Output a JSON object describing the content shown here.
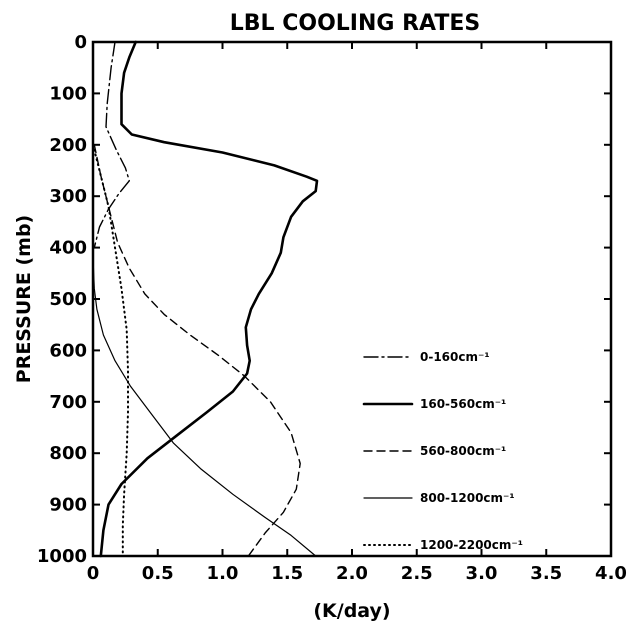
{
  "chart_data": {
    "type": "line",
    "title": "LBL COOLING RATES",
    "xlabel": "(K/day)",
    "ylabel": "PRESSURE (mb)",
    "xlim": [
      0,
      4.0
    ],
    "ylim": [
      1000,
      0
    ],
    "y_inverted": true,
    "grid": false,
    "legend_position": "right",
    "x_ticks": [
      "0",
      "0.5",
      "1.0",
      "1.5",
      "2.0",
      "2.5",
      "3.0",
      "3.5",
      "4.0"
    ],
    "y_ticks": [
      "0",
      "100",
      "200",
      "300",
      "400",
      "500",
      "600",
      "700",
      "800",
      "900",
      "1000"
    ],
    "series": [
      {
        "name": "0-160cm⁻¹",
        "style": "dashdot",
        "width": 1.4,
        "points": [
          [
            0.17,
            0
          ],
          [
            0.14,
            50
          ],
          [
            0.11,
            120
          ],
          [
            0.1,
            165
          ],
          [
            0.18,
            210
          ],
          [
            0.25,
            245
          ],
          [
            0.28,
            270
          ],
          [
            0.2,
            295
          ],
          [
            0.12,
            325
          ],
          [
            0.05,
            360
          ],
          [
            0.01,
            400
          ]
        ]
      },
      {
        "name": "160-560cm⁻¹",
        "style": "solid",
        "width": 2.6,
        "points": [
          [
            0.33,
            0
          ],
          [
            0.28,
            30
          ],
          [
            0.24,
            60
          ],
          [
            0.22,
            100
          ],
          [
            0.22,
            140
          ],
          [
            0.22,
            160
          ],
          [
            0.3,
            180
          ],
          [
            0.55,
            195
          ],
          [
            1.0,
            215
          ],
          [
            1.4,
            240
          ],
          [
            1.65,
            262
          ],
          [
            1.73,
            270
          ],
          [
            1.72,
            290
          ],
          [
            1.62,
            310
          ],
          [
            1.53,
            340
          ],
          [
            1.47,
            380
          ],
          [
            1.45,
            410
          ],
          [
            1.38,
            450
          ],
          [
            1.28,
            490
          ],
          [
            1.22,
            520
          ],
          [
            1.18,
            555
          ],
          [
            1.19,
            590
          ],
          [
            1.21,
            620
          ],
          [
            1.19,
            645
          ],
          [
            1.08,
            680
          ],
          [
            0.88,
            720
          ],
          [
            0.65,
            765
          ],
          [
            0.42,
            810
          ],
          [
            0.22,
            860
          ],
          [
            0.12,
            900
          ],
          [
            0.08,
            950
          ],
          [
            0.06,
            1000
          ]
        ]
      },
      {
        "name": "560-800cm⁻¹",
        "style": "dashed",
        "width": 1.4,
        "points": [
          [
            0.01,
            200
          ],
          [
            0.06,
            260
          ],
          [
            0.12,
            320
          ],
          [
            0.19,
            390
          ],
          [
            0.28,
            440
          ],
          [
            0.4,
            490
          ],
          [
            0.55,
            530
          ],
          [
            0.75,
            570
          ],
          [
            0.97,
            610
          ],
          [
            1.17,
            650
          ],
          [
            1.37,
            700
          ],
          [
            1.53,
            760
          ],
          [
            1.6,
            820
          ],
          [
            1.57,
            870
          ],
          [
            1.47,
            915
          ],
          [
            1.33,
            955
          ],
          [
            1.2,
            1000
          ]
        ]
      },
      {
        "name": "800-1200cm⁻¹",
        "style": "solid",
        "width": 1.2,
        "points": [
          [
            0.0,
            420
          ],
          [
            0.01,
            480
          ],
          [
            0.03,
            520
          ],
          [
            0.08,
            570
          ],
          [
            0.17,
            620
          ],
          [
            0.29,
            670
          ],
          [
            0.44,
            720
          ],
          [
            0.62,
            780
          ],
          [
            0.83,
            830
          ],
          [
            1.08,
            880
          ],
          [
            1.33,
            925
          ],
          [
            1.53,
            960
          ],
          [
            1.72,
            1000
          ]
        ]
      },
      {
        "name": "1200-2200cm⁻¹",
        "style": "dotted",
        "width": 2,
        "points": [
          [
            0.0,
            200
          ],
          [
            0.06,
            260
          ],
          [
            0.12,
            320
          ],
          [
            0.17,
            400
          ],
          [
            0.22,
            480
          ],
          [
            0.26,
            560
          ],
          [
            0.27,
            640
          ],
          [
            0.27,
            720
          ],
          [
            0.26,
            800
          ],
          [
            0.24,
            880
          ],
          [
            0.23,
            940
          ],
          [
            0.23,
            1000
          ]
        ]
      }
    ]
  }
}
